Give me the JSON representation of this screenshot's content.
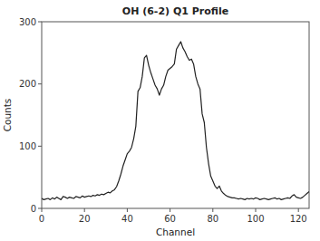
{
  "chart_data": {
    "type": "line",
    "title": "OH (6-2) Q1 Profile",
    "xlabel": "Channel",
    "ylabel": "Counts",
    "xlim": [
      0,
      125
    ],
    "ylim": [
      0,
      300
    ],
    "xticks": [
      0,
      20,
      40,
      60,
      80,
      100,
      120
    ],
    "yticks": [
      0,
      100,
      200,
      300
    ],
    "color": "#222222",
    "grid": false,
    "x": [
      0,
      1,
      2,
      3,
      4,
      5,
      6,
      7,
      8,
      9,
      10,
      11,
      12,
      13,
      14,
      15,
      16,
      17,
      18,
      19,
      20,
      21,
      22,
      23,
      24,
      25,
      26,
      27,
      28,
      29,
      30,
      31,
      32,
      33,
      34,
      35,
      36,
      37,
      38,
      39,
      40,
      41,
      42,
      43,
      44,
      45,
      46,
      47,
      48,
      49,
      50,
      51,
      52,
      53,
      54,
      55,
      56,
      57,
      58,
      59,
      60,
      61,
      62,
      63,
      64,
      65,
      66,
      67,
      68,
      69,
      70,
      71,
      72,
      73,
      74,
      75,
      76,
      77,
      78,
      79,
      80,
      81,
      82,
      83,
      84,
      85,
      86,
      87,
      88,
      89,
      90,
      91,
      92,
      93,
      94,
      95,
      96,
      97,
      98,
      99,
      100,
      101,
      102,
      103,
      104,
      105,
      106,
      107,
      108,
      109,
      110,
      111,
      112,
      113,
      114,
      115,
      116,
      117,
      118,
      119,
      120,
      121,
      122,
      123,
      124,
      125
    ],
    "values": [
      16,
      14,
      15,
      16,
      14,
      17,
      15,
      18,
      16,
      14,
      19,
      18,
      16,
      18,
      17,
      16,
      19,
      18,
      17,
      20,
      18,
      19,
      20,
      19,
      21,
      20,
      22,
      21,
      23,
      22,
      24,
      26,
      25,
      28,
      30,
      35,
      44,
      55,
      68,
      78,
      88,
      92,
      98,
      112,
      132,
      188,
      194,
      212,
      242,
      246,
      230,
      218,
      208,
      198,
      192,
      182,
      192,
      198,
      212,
      222,
      225,
      228,
      232,
      256,
      262,
      268,
      258,
      252,
      244,
      238,
      240,
      232,
      212,
      200,
      192,
      152,
      138,
      98,
      72,
      52,
      44,
      36,
      32,
      36,
      28,
      24,
      21,
      19,
      18,
      17,
      17,
      16,
      15,
      16,
      15,
      14,
      16,
      15,
      16,
      15,
      17,
      16,
      14,
      15,
      16,
      15,
      14,
      15,
      16,
      17,
      15,
      16,
      14,
      15,
      16,
      17,
      16,
      20,
      22,
      18,
      17,
      16,
      18,
      21,
      24,
      27
    ]
  }
}
